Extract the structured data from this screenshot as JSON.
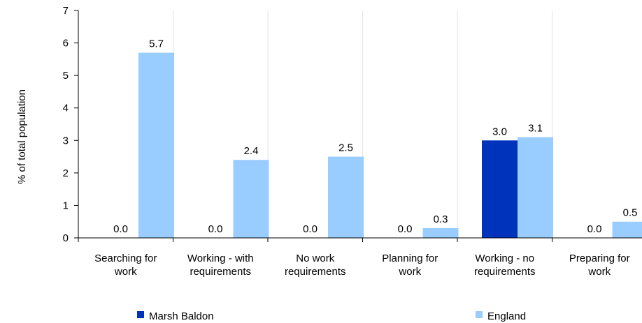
{
  "chart_data": {
    "type": "bar",
    "title": "",
    "xlabel": "",
    "ylabel": "% of total population",
    "ylim": [
      0,
      7
    ],
    "yticks": [
      0,
      1,
      2,
      3,
      4,
      5,
      6,
      7
    ],
    "grid": "vertical separators between categories",
    "legend_position": "bottom",
    "categories": [
      [
        "Searching for",
        "work"
      ],
      [
        "Working - with",
        "requirements"
      ],
      [
        "No work",
        "requirements"
      ],
      [
        "Planning for",
        "work"
      ],
      [
        "Working - no",
        "requirements"
      ],
      [
        "Preparing for",
        "work"
      ]
    ],
    "series": [
      {
        "name": "Marsh Baldon",
        "color": "#0033bb",
        "values": [
          0.0,
          0.0,
          0.0,
          0.0,
          3.0,
          0.0
        ]
      },
      {
        "name": "England",
        "color": "#99ccff",
        "values": [
          5.7,
          2.4,
          2.5,
          0.3,
          3.1,
          0.5
        ]
      }
    ]
  }
}
